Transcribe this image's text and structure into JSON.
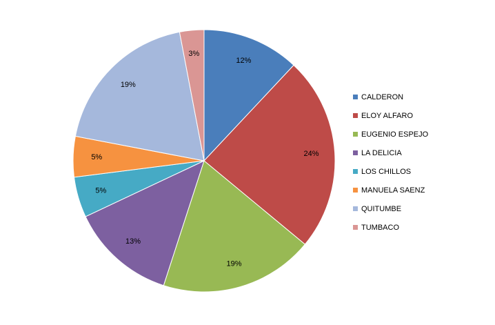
{
  "chart_data": {
    "type": "pie",
    "legend_position": "right",
    "start_angle_deg": 0,
    "direction": "clockwise",
    "slices": [
      {
        "category": "CALDERON",
        "value": 12,
        "label": "12%",
        "color": "#4a7ebb"
      },
      {
        "category": "ELOY ALFARO",
        "value": 24,
        "label": "24%",
        "color": "#be4b48"
      },
      {
        "category": "EUGENIO ESPEJO",
        "value": 19,
        "label": "19%",
        "color": "#98b954"
      },
      {
        "category": "LA DELICIA",
        "value": 13,
        "label": "13%",
        "color": "#7d60a0"
      },
      {
        "category": "LOS CHILLOS",
        "value": 5,
        "label": "5%",
        "color": "#46aac5"
      },
      {
        "category": "MANUELA SAENZ",
        "value": 5,
        "label": "5%",
        "color": "#f69240"
      },
      {
        "category": "QUITUMBE",
        "value": 19,
        "label": "19%",
        "color": "#a5b8dc"
      },
      {
        "category": "TUMBACO",
        "value": 3,
        "label": "3%",
        "color": "#da9694"
      }
    ]
  }
}
